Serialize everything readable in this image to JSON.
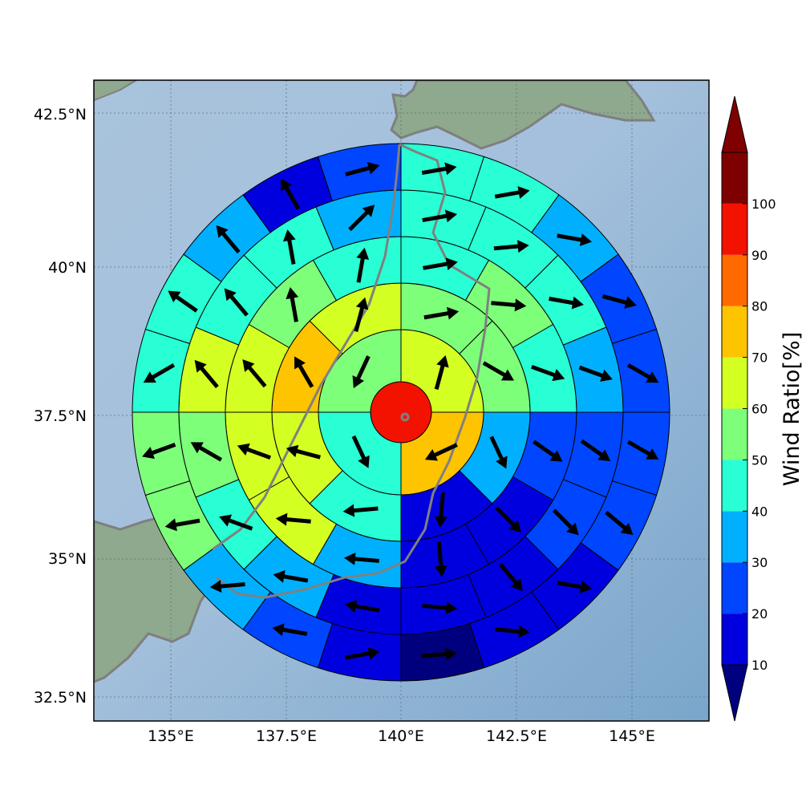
{
  "map": {
    "x_ticks": [
      "135°E",
      "137.5°E",
      "140°E",
      "142.5°E",
      "145°E"
    ],
    "y_ticks": [
      "42.5°N",
      "40°N",
      "37.5°N",
      "35°N",
      "32.5°N"
    ],
    "gridlines": true,
    "center": {
      "lon": 140.0,
      "lat": 37.6
    },
    "rings": [
      {
        "sectors": 1,
        "values": [
          95
        ]
      },
      {
        "sectors": 4,
        "values": [
          60,
          75,
          45,
          55
        ],
        "winds": [
          [
            15,
            1.0
          ],
          [
            -115,
            1.0
          ],
          [
            155,
            1.0
          ],
          [
            -155,
            1.0
          ]
        ]
      },
      {
        "sectors": 8,
        "values": [
          55,
          55,
          35,
          15,
          45,
          65,
          70,
          60
        ],
        "winds": [
          [
            80,
            1.0
          ],
          [
            120,
            1.0
          ],
          [
            155,
            1.0
          ],
          [
            185,
            1.0
          ],
          [
            -95,
            1.0
          ],
          [
            -75,
            1.0
          ],
          [
            -30,
            1.0
          ],
          [
            15,
            1.0
          ]
        ]
      },
      {
        "sectors": 12,
        "values": [
          45,
          55,
          40,
          25,
          15,
          15,
          35,
          65,
          65,
          65,
          55,
          40
        ],
        "winds": [
          [
            80,
            1.0
          ],
          [
            95,
            1.0
          ],
          [
            110,
            1.0
          ],
          [
            125,
            1.0
          ],
          [
            135,
            1.0
          ],
          [
            175,
            1.0
          ],
          [
            -85,
            1.0
          ],
          [
            -85,
            1.0
          ],
          [
            -70,
            1.0
          ],
          [
            -40,
            1.0
          ],
          [
            -10,
            1.0
          ],
          [
            10,
            1.0
          ]
        ]
      },
      {
        "sectors": 16,
        "values": [
          45,
          45,
          45,
          35,
          25,
          25,
          15,
          15,
          15,
          35,
          45,
          55,
          65,
          45,
          45,
          35
        ],
        "winds": [
          [
            80,
            1.0
          ],
          [
            85,
            1.0
          ],
          [
            100,
            1.0
          ],
          [
            110,
            1.0
          ],
          [
            125,
            1.0
          ],
          [
            135,
            1.0
          ],
          [
            140,
            1.0
          ],
          [
            95,
            1.0
          ],
          [
            -80,
            1.0
          ],
          [
            -80,
            1.0
          ],
          [
            -70,
            1.0
          ],
          [
            -60,
            1.0
          ],
          [
            -40,
            1.0
          ],
          [
            -40,
            1.0
          ],
          [
            -10,
            1.0
          ],
          [
            45,
            1.0
          ]
        ]
      },
      {
        "sectors": 20,
        "values": [
          45,
          45,
          35,
          25,
          25,
          25,
          25,
          15,
          15,
          5,
          15,
          25,
          35,
          55,
          55,
          45,
          45,
          35,
          15,
          25
        ],
        "winds": [
          [
            80,
            1.0
          ],
          [
            80,
            1.0
          ],
          [
            100,
            1.0
          ],
          [
            105,
            1.0
          ],
          [
            120,
            1.0
          ],
          [
            120,
            1.0
          ],
          [
            130,
            1.0
          ],
          [
            100,
            1.0
          ],
          [
            95,
            1.0
          ],
          [
            85,
            1.0
          ],
          [
            80,
            1.0
          ],
          [
            -80,
            1.0
          ],
          [
            -95,
            1.0
          ],
          [
            -100,
            1.0
          ],
          [
            -110,
            1.0
          ],
          [
            -120,
            1.0
          ],
          [
            -55,
            1.0
          ],
          [
            -40,
            1.0
          ],
          [
            -30,
            1.0
          ],
          [
            75,
            1.0
          ]
        ]
      }
    ]
  },
  "colorbar": {
    "title": "Wind Ratio[%]",
    "labels": [
      "10",
      "20",
      "30",
      "40",
      "50",
      "60",
      "70",
      "80",
      "90",
      "100"
    ],
    "colors": [
      "#0000df",
      "#0046ff",
      "#00b0ff",
      "#28ffd4",
      "#7dff7a",
      "#d4ff23",
      "#ffc400",
      "#ff6a00",
      "#f31200",
      "#7f0000"
    ],
    "under_color": "#00007f",
    "over_color": "#7f0000"
  }
}
